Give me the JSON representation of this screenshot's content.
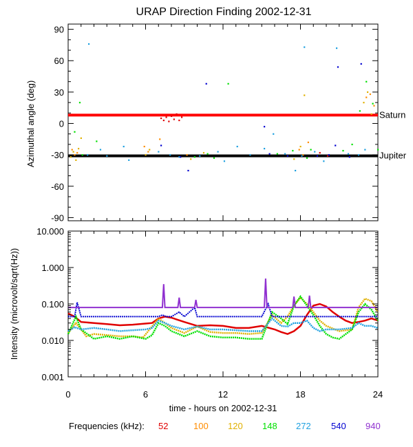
{
  "chart_data": [
    {
      "type": "scatter",
      "title": "URAP Direction Finding  2002-12-31",
      "ylabel": "Azimuthal angle (deg)",
      "xlabel": "",
      "xlim": [
        0,
        24
      ],
      "ylim": [
        -93,
        95
      ],
      "y_ticks": [
        90,
        60,
        30,
        0,
        -30,
        -60,
        -90
      ],
      "y_tick_labels": [
        "90",
        "60",
        "30",
        "0",
        "-30",
        "-60",
        "-90"
      ],
      "reference_lines": [
        {
          "name": "Saturn",
          "label": "Saturn",
          "y": 8,
          "color": "#ff0000"
        },
        {
          "name": "Jupiter",
          "label": "Jupiter",
          "y": -31,
          "color": "#000000"
        }
      ],
      "series": [
        {
          "name": "52",
          "color": "#e00000",
          "points": [
            [
              7.2,
              5
            ],
            [
              7.4,
              3
            ],
            [
              7.6,
              6
            ],
            [
              7.8,
              2
            ],
            [
              8.0,
              7
            ],
            [
              8.2,
              4
            ],
            [
              8.4,
              9
            ],
            [
              8.6,
              3
            ],
            [
              8.8,
              6
            ],
            [
              19.5,
              -28
            ],
            [
              20.1,
              -31
            ]
          ]
        },
        {
          "name": "100",
          "color": "#ff8c00",
          "points": [
            [
              0.3,
              -25
            ],
            [
              0.5,
              -30
            ],
            [
              0.7,
              -28
            ],
            [
              5.9,
              -22
            ],
            [
              6.2,
              -27
            ],
            [
              7.1,
              -15
            ],
            [
              9.2,
              -30
            ],
            [
              17.9,
              -25
            ],
            [
              18.2,
              -30
            ],
            [
              18.6,
              -18
            ],
            [
              23.1,
              25
            ],
            [
              23.4,
              28
            ],
            [
              23.7,
              17
            ]
          ]
        },
        {
          "name": "120",
          "color": "#e0b000",
          "points": [
            [
              0.2,
              -32
            ],
            [
              0.4,
              -27
            ],
            [
              0.6,
              -35
            ],
            [
              0.8,
              -24
            ],
            [
              1.0,
              -14
            ],
            [
              6.0,
              -30
            ],
            [
              6.3,
              -25
            ],
            [
              9.5,
              -34
            ],
            [
              10.5,
              -28
            ],
            [
              17.5,
              -34
            ],
            [
              18.0,
              -22
            ],
            [
              18.3,
              27
            ],
            [
              22.9,
              20
            ],
            [
              23.2,
              30
            ],
            [
              23.5,
              9
            ]
          ]
        },
        {
          "name": "148",
          "color": "#00e000",
          "points": [
            [
              0.5,
              -8
            ],
            [
              0.9,
              20
            ],
            [
              1.1,
              -30
            ],
            [
              2.2,
              -17
            ],
            [
              9.8,
              -32
            ],
            [
              10.8,
              -29
            ],
            [
              11.3,
              -33
            ],
            [
              12.4,
              38
            ],
            [
              16.2,
              -29
            ],
            [
              17.4,
              -26
            ],
            [
              18.5,
              -33
            ],
            [
              18.8,
              -25
            ],
            [
              21.3,
              -26
            ],
            [
              22.0,
              -20
            ],
            [
              22.6,
              12
            ],
            [
              23.1,
              40
            ],
            [
              23.6,
              19
            ],
            [
              24.0,
              -25
            ]
          ]
        },
        {
          "name": "272",
          "color": "#1ea0e0",
          "points": [
            [
              1.5,
              -30
            ],
            [
              1.6,
              76
            ],
            [
              2.5,
              -25
            ],
            [
              3.0,
              -31
            ],
            [
              4.3,
              -22
            ],
            [
              4.7,
              -35
            ],
            [
              7.0,
              -27
            ],
            [
              7.9,
              -30
            ],
            [
              8.6,
              -32
            ],
            [
              10.2,
              -31
            ],
            [
              11.6,
              -27
            ],
            [
              12.1,
              -36
            ],
            [
              13.1,
              -22
            ],
            [
              14.1,
              -30
            ],
            [
              15.2,
              -24
            ],
            [
              15.9,
              -10
            ],
            [
              16.8,
              -29
            ],
            [
              17.6,
              -45
            ],
            [
              18.1,
              -31
            ],
            [
              18.3,
              73
            ],
            [
              19.1,
              -27
            ],
            [
              19.8,
              -36
            ],
            [
              20.8,
              72
            ],
            [
              21.7,
              -29
            ],
            [
              22.5,
              -30
            ],
            [
              23.0,
              -25
            ]
          ]
        },
        {
          "name": "540",
          "color": "#0000d0",
          "points": [
            [
              7.2,
              -21
            ],
            [
              8.7,
              -32
            ],
            [
              9.3,
              -45
            ],
            [
              10.7,
              38
            ],
            [
              15.2,
              -3
            ],
            [
              15.6,
              -29
            ],
            [
              17.0,
              -31
            ],
            [
              19.3,
              -31
            ],
            [
              20.2,
              -30
            ],
            [
              20.7,
              -21
            ],
            [
              20.9,
              54
            ],
            [
              21.8,
              -32
            ],
            [
              22.7,
              57
            ]
          ]
        },
        {
          "name": "940",
          "color": "#9030d0",
          "points": []
        }
      ]
    },
    {
      "type": "line",
      "title": "",
      "ylabel": "Intensity (microvolt/sqrt(Hz))",
      "xlabel": "time - hours on 2002-12-31",
      "xlim": [
        0,
        24
      ],
      "scale": "log",
      "ylim": [
        0.001,
        10
      ],
      "y_ticks": [
        10,
        1,
        0.1,
        0.01,
        0.001
      ],
      "y_tick_labels": [
        "10.000",
        "1.000",
        "0.100",
        "0.010",
        "0.001"
      ],
      "x_ticks": [
        0,
        6,
        12,
        18,
        24
      ],
      "x_tick_labels": [
        "0",
        "6",
        "12",
        "18",
        "24"
      ],
      "series": [
        {
          "name": "52",
          "color": "#e00000",
          "x": [
            0,
            0.5,
            1,
            2,
            3,
            4,
            5,
            6,
            6.5,
            7,
            7.5,
            8,
            9,
            10,
            11,
            12,
            13,
            14,
            15,
            16,
            16.5,
            17,
            17.5,
            18,
            18.5,
            19,
            19.5,
            20,
            20.5,
            21,
            21.5,
            22,
            22.5,
            23,
            23.5,
            24
          ],
          "y": [
            0.055,
            0.045,
            0.032,
            0.03,
            0.028,
            0.026,
            0.027,
            0.029,
            0.03,
            0.04,
            0.045,
            0.042,
            0.032,
            0.025,
            0.026,
            0.025,
            0.022,
            0.022,
            0.025,
            0.02,
            0.017,
            0.015,
            0.018,
            0.025,
            0.05,
            0.09,
            0.1,
            0.085,
            0.06,
            0.045,
            0.035,
            0.03,
            0.032,
            0.035,
            0.04,
            0.035
          ]
        },
        {
          "name": "100",
          "color": "#ff8c00",
          "x": [],
          "y": []
        },
        {
          "name": "120",
          "color": "#e0b000",
          "x": [
            0,
            0.6,
            1,
            1.4,
            2,
            3,
            4,
            5,
            5.8,
            6.2,
            7,
            7.5,
            8,
            9,
            10,
            11,
            12,
            13,
            14,
            15,
            15.8,
            16.5,
            17,
            17.5,
            18,
            18.5,
            19,
            19.5,
            20,
            21,
            22,
            22.5,
            23,
            23.5,
            24
          ],
          "y": [
            0.016,
            0.03,
            0.02,
            0.013,
            0.015,
            0.014,
            0.013,
            0.013,
            0.012,
            0.018,
            0.04,
            0.03,
            0.022,
            0.016,
            0.024,
            0.017,
            0.016,
            0.016,
            0.015,
            0.016,
            0.05,
            0.03,
            0.045,
            0.09,
            0.15,
            0.1,
            0.06,
            0.035,
            0.025,
            0.018,
            0.02,
            0.08,
            0.14,
            0.12,
            0.06
          ]
        },
        {
          "name": "148",
          "color": "#00e000",
          "x": [
            0,
            0.6,
            1,
            2,
            3,
            4,
            5,
            6,
            6.5,
            7,
            7.5,
            8,
            9,
            10,
            11,
            12,
            13,
            14,
            15,
            15.8,
            16.5,
            17,
            17.5,
            18,
            18.5,
            19,
            19.5,
            20,
            20.5,
            21,
            22,
            22.5,
            23,
            23.5,
            24
          ],
          "y": [
            0.015,
            0.045,
            0.02,
            0.011,
            0.013,
            0.011,
            0.013,
            0.011,
            0.014,
            0.03,
            0.025,
            0.018,
            0.013,
            0.018,
            0.013,
            0.012,
            0.012,
            0.011,
            0.011,
            0.06,
            0.04,
            0.028,
            0.09,
            0.16,
            0.09,
            0.05,
            0.025,
            0.015,
            0.012,
            0.011,
            0.02,
            0.06,
            0.1,
            0.07,
            0.035
          ]
        },
        {
          "name": "272",
          "color": "#1ea0e0",
          "x": [
            0,
            0.5,
            1,
            2,
            3,
            4,
            5,
            6,
            6.5,
            7,
            7.5,
            8,
            9,
            10,
            11,
            12,
            13,
            14,
            15,
            15.8,
            16.5,
            17,
            17.5,
            18,
            18.5,
            19,
            19.5,
            20,
            21,
            22,
            22.5,
            23,
            23.5,
            24
          ],
          "y": [
            0.018,
            0.023,
            0.02,
            0.022,
            0.02,
            0.018,
            0.019,
            0.02,
            0.022,
            0.035,
            0.03,
            0.025,
            0.02,
            0.024,
            0.02,
            0.02,
            0.019,
            0.018,
            0.018,
            0.04,
            0.025,
            0.024,
            0.03,
            0.03,
            0.035,
            0.022,
            0.018,
            0.02,
            0.02,
            0.022,
            0.03,
            0.025,
            0.025,
            0.022
          ]
        },
        {
          "name": "540",
          "color": "#0000d0",
          "x": [
            0,
            0.5,
            0.7,
            1,
            2,
            4,
            6,
            7,
            7.3,
            7.6,
            8,
            8.6,
            9,
            9.8,
            10,
            11,
            12,
            14,
            15,
            15.5,
            15.8,
            16,
            17,
            18,
            19,
            20,
            21,
            22,
            23,
            24
          ],
          "y": [
            0.045,
            0.045,
            0.11,
            0.045,
            0.045,
            0.045,
            0.045,
            0.045,
            0.05,
            0.045,
            0.045,
            0.06,
            0.045,
            0.08,
            0.045,
            0.045,
            0.045,
            0.045,
            0.045,
            0.1,
            0.045,
            0.045,
            0.045,
            0.045,
            0.045,
            0.045,
            0.045,
            0.045,
            0.045,
            0.045
          ]
        },
        {
          "name": "940",
          "color": "#9030d0",
          "x": [
            0,
            7.3,
            7.4,
            7.5,
            7.6,
            8.5,
            8.6,
            8.7,
            9.8,
            9.9,
            10,
            15.2,
            15.3,
            15.4,
            17.4,
            17.5,
            17.6,
            18.6,
            18.7,
            18.8,
            22,
            24
          ],
          "y": [
            0.08,
            0.08,
            0.35,
            0.08,
            0.08,
            0.08,
            0.15,
            0.08,
            0.08,
            0.13,
            0.08,
            0.08,
            0.5,
            0.08,
            0.08,
            0.16,
            0.08,
            0.08,
            0.17,
            0.08,
            0.08,
            0.08
          ]
        }
      ],
      "reference_lines": []
    }
  ],
  "legend": {
    "label": "Frequencies (kHz):",
    "items": [
      {
        "text": "52",
        "color": "#e00000"
      },
      {
        "text": "100",
        "color": "#ff8c00"
      },
      {
        "text": "120",
        "color": "#e0b000"
      },
      {
        "text": "148",
        "color": "#00e000"
      },
      {
        "text": "272",
        "color": "#1ea0e0"
      },
      {
        "text": "540",
        "color": "#0000d0"
      },
      {
        "text": "940",
        "color": "#9030d0"
      }
    ]
  }
}
